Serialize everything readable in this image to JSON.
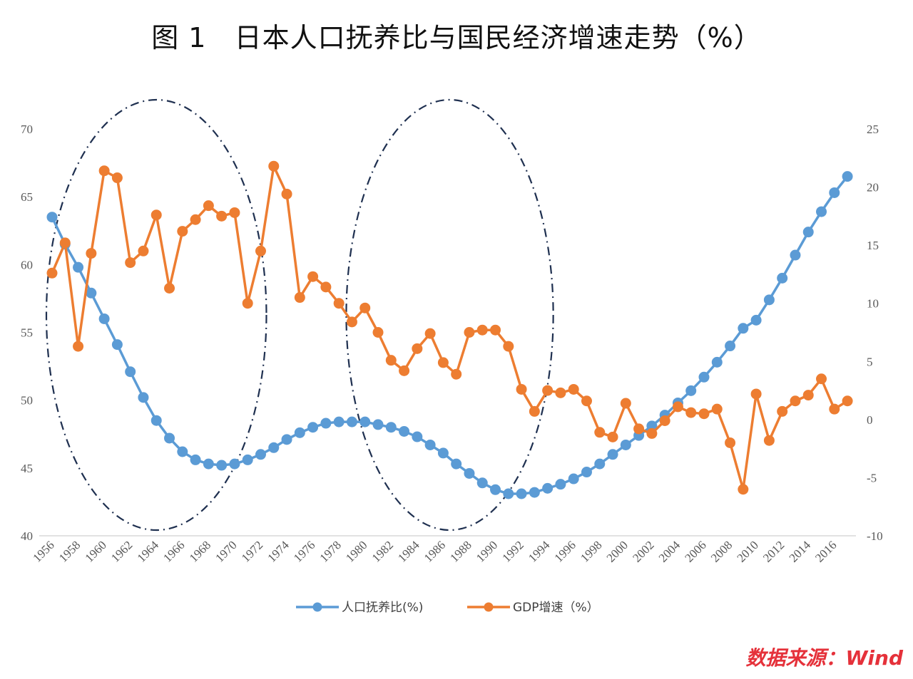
{
  "chart_data": {
    "type": "line",
    "title": "图 1   日本人口抚养比与国民经济增速走势（%）",
    "x": [
      1956,
      1957,
      1958,
      1959,
      1960,
      1961,
      1962,
      1963,
      1964,
      1965,
      1966,
      1967,
      1968,
      1969,
      1970,
      1971,
      1972,
      1973,
      1974,
      1975,
      1976,
      1977,
      1978,
      1979,
      1980,
      1981,
      1982,
      1983,
      1984,
      1985,
      1986,
      1987,
      1988,
      1989,
      1990,
      1991,
      1992,
      1993,
      1994,
      1995,
      1996,
      1997,
      1998,
      1999,
      2000,
      2001,
      2002,
      2003,
      2004,
      2005,
      2006,
      2007,
      2008,
      2009,
      2010,
      2011,
      2012,
      2013,
      2014,
      2015,
      2016,
      2017
    ],
    "x_tick_labels": [
      "1956",
      "1958",
      "1960",
      "1962",
      "1964",
      "1966",
      "1968",
      "1970",
      "1972",
      "1974",
      "1976",
      "1978",
      "1980",
      "1982",
      "1984",
      "1986",
      "1988",
      "1990",
      "1992",
      "1994",
      "1996",
      "1998",
      "2000",
      "2002",
      "2004",
      "2006",
      "2008",
      "2010",
      "2012",
      "2014",
      "2016"
    ],
    "y_left": {
      "range": [
        40,
        70
      ],
      "ticks": [
        "40",
        "45",
        "50",
        "55",
        "60",
        "65",
        "70"
      ]
    },
    "y_right": {
      "range": [
        -10,
        25
      ],
      "ticks": [
        "-10",
        "-5",
        "0",
        "5",
        "10",
        "15",
        "20",
        "25"
      ]
    },
    "grid": false,
    "legend_position": "bottom",
    "series": [
      {
        "name": "人口抚养比(%)",
        "axis": "left",
        "color": "#5b9bd5",
        "values": [
          63.5,
          61.5,
          59.8,
          57.9,
          56.0,
          54.1,
          52.1,
          50.2,
          48.5,
          47.2,
          46.2,
          45.6,
          45.3,
          45.2,
          45.3,
          45.6,
          46.0,
          46.5,
          47.1,
          47.6,
          48.0,
          48.3,
          48.4,
          48.4,
          48.4,
          48.2,
          48.0,
          47.7,
          47.3,
          46.7,
          46.1,
          45.3,
          44.6,
          43.9,
          43.4,
          43.1,
          43.1,
          43.2,
          43.5,
          43.8,
          44.2,
          44.7,
          45.3,
          46.0,
          46.7,
          47.4,
          48.1,
          48.9,
          49.8,
          50.7,
          51.7,
          52.8,
          54.0,
          55.3,
          55.9,
          57.4,
          59.0,
          60.7,
          62.4,
          63.9,
          65.3,
          66.5
        ]
      },
      {
        "name": "GDP增速（%）",
        "axis": "right",
        "color": "#ed7d31",
        "values": [
          12.6,
          15.2,
          6.3,
          14.3,
          21.4,
          20.8,
          13.5,
          14.5,
          17.6,
          11.3,
          16.2,
          17.2,
          18.4,
          17.5,
          17.8,
          10.0,
          14.5,
          21.8,
          19.4,
          10.5,
          12.3,
          11.4,
          10.0,
          8.4,
          9.6,
          7.5,
          5.1,
          4.2,
          6.1,
          7.4,
          4.9,
          3.9,
          7.5,
          7.7,
          7.7,
          6.3,
          2.6,
          0.7,
          2.5,
          2.3,
          2.6,
          1.6,
          -1.1,
          -1.5,
          1.4,
          -0.8,
          -1.2,
          -0.1,
          1.1,
          0.6,
          0.5,
          0.9,
          -2.0,
          -6.0,
          2.2,
          -1.8,
          0.7,
          1.6,
          2.1,
          3.5,
          0.9,
          1.6
        ]
      }
    ],
    "annotations": [
      {
        "shape": "dash-dot ellipse",
        "span": [
          1956,
          1972
        ]
      },
      {
        "shape": "dash-dot ellipse",
        "span": [
          1979,
          1994
        ]
      }
    ],
    "ellipse_color": "#1f3050",
    "source": "数据来源：Wind"
  }
}
